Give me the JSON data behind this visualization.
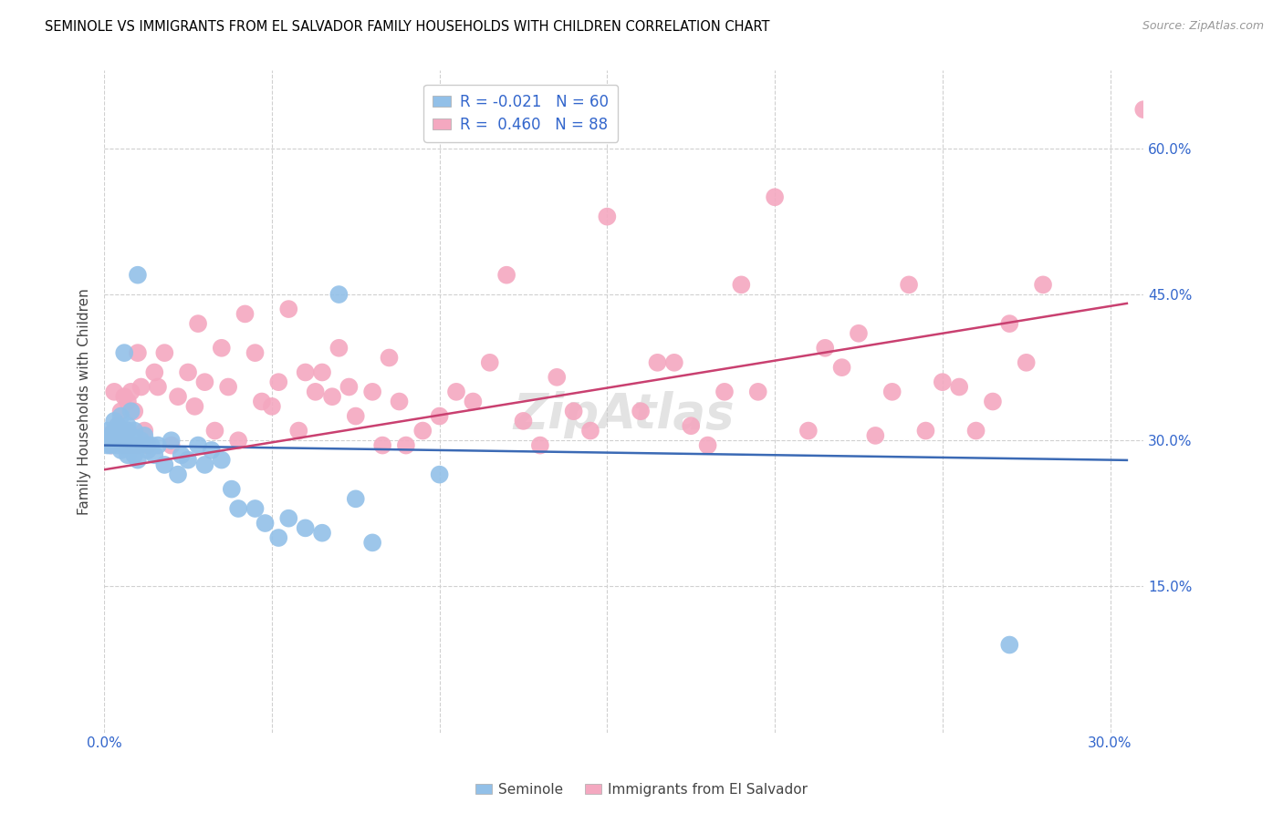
{
  "title": "SEMINOLE VS IMMIGRANTS FROM EL SALVADOR FAMILY HOUSEHOLDS WITH CHILDREN CORRELATION CHART",
  "source": "Source: ZipAtlas.com",
  "ylabel": "Family Households with Children",
  "xlim": [
    0.0,
    0.31
  ],
  "ylim": [
    0.0,
    0.68
  ],
  "x_ticks": [
    0.0,
    0.05,
    0.1,
    0.15,
    0.2,
    0.25,
    0.3
  ],
  "x_tick_labels": [
    "0.0%",
    "",
    "",
    "",
    "",
    "",
    "30.0%"
  ],
  "y_ticks": [
    0.15,
    0.3,
    0.45,
    0.6
  ],
  "y_tick_labels": [
    "15.0%",
    "30.0%",
    "45.0%",
    "60.0%"
  ],
  "seminole_R": -0.021,
  "seminole_N": 60,
  "salvador_R": 0.46,
  "salvador_N": 88,
  "seminole_color": "#92c0e8",
  "salvador_color": "#f4a8c0",
  "seminole_line_color": "#3b6ab5",
  "salvador_line_color": "#c94070",
  "legend_label_blue": "Seminole",
  "legend_label_pink": "Immigrants from El Salvador",
  "seminole_x": [
    0.001,
    0.001,
    0.002,
    0.002,
    0.003,
    0.003,
    0.003,
    0.004,
    0.004,
    0.004,
    0.005,
    0.005,
    0.005,
    0.005,
    0.006,
    0.006,
    0.006,
    0.007,
    0.007,
    0.007,
    0.007,
    0.007,
    0.008,
    0.008,
    0.008,
    0.009,
    0.009,
    0.009,
    0.01,
    0.01,
    0.01,
    0.011,
    0.011,
    0.012,
    0.013,
    0.014,
    0.015,
    0.016,
    0.018,
    0.02,
    0.022,
    0.023,
    0.025,
    0.028,
    0.03,
    0.032,
    0.035,
    0.038,
    0.04,
    0.045,
    0.048,
    0.052,
    0.055,
    0.06,
    0.065,
    0.07,
    0.075,
    0.08,
    0.1,
    0.27
  ],
  "seminole_y": [
    0.295,
    0.31,
    0.305,
    0.295,
    0.32,
    0.3,
    0.31,
    0.305,
    0.295,
    0.315,
    0.325,
    0.3,
    0.31,
    0.29,
    0.39,
    0.305,
    0.295,
    0.315,
    0.3,
    0.31,
    0.295,
    0.285,
    0.33,
    0.305,
    0.295,
    0.31,
    0.285,
    0.3,
    0.295,
    0.28,
    0.47,
    0.3,
    0.295,
    0.305,
    0.29,
    0.295,
    0.285,
    0.295,
    0.275,
    0.3,
    0.265,
    0.285,
    0.28,
    0.295,
    0.275,
    0.29,
    0.28,
    0.25,
    0.23,
    0.23,
    0.215,
    0.2,
    0.22,
    0.21,
    0.205,
    0.45,
    0.24,
    0.195,
    0.265,
    0.09
  ],
  "salvador_x": [
    0.001,
    0.002,
    0.003,
    0.003,
    0.004,
    0.005,
    0.005,
    0.006,
    0.006,
    0.007,
    0.007,
    0.008,
    0.008,
    0.009,
    0.01,
    0.01,
    0.011,
    0.012,
    0.013,
    0.015,
    0.016,
    0.018,
    0.02,
    0.022,
    0.025,
    0.027,
    0.028,
    0.03,
    0.033,
    0.035,
    0.037,
    0.04,
    0.042,
    0.045,
    0.047,
    0.05,
    0.052,
    0.055,
    0.058,
    0.06,
    0.063,
    0.065,
    0.068,
    0.07,
    0.073,
    0.075,
    0.08,
    0.083,
    0.085,
    0.088,
    0.09,
    0.095,
    0.1,
    0.105,
    0.11,
    0.115,
    0.12,
    0.125,
    0.13,
    0.135,
    0.14,
    0.145,
    0.15,
    0.16,
    0.165,
    0.17,
    0.175,
    0.18,
    0.185,
    0.19,
    0.195,
    0.2,
    0.21,
    0.215,
    0.22,
    0.225,
    0.23,
    0.235,
    0.24,
    0.245,
    0.25,
    0.255,
    0.26,
    0.265,
    0.27,
    0.275,
    0.28,
    0.31
  ],
  "salvador_y": [
    0.305,
    0.295,
    0.35,
    0.31,
    0.315,
    0.33,
    0.3,
    0.345,
    0.295,
    0.34,
    0.31,
    0.35,
    0.295,
    0.33,
    0.39,
    0.295,
    0.355,
    0.31,
    0.295,
    0.37,
    0.355,
    0.39,
    0.295,
    0.345,
    0.37,
    0.335,
    0.42,
    0.36,
    0.31,
    0.395,
    0.355,
    0.3,
    0.43,
    0.39,
    0.34,
    0.335,
    0.36,
    0.435,
    0.31,
    0.37,
    0.35,
    0.37,
    0.345,
    0.395,
    0.355,
    0.325,
    0.35,
    0.295,
    0.385,
    0.34,
    0.295,
    0.31,
    0.325,
    0.35,
    0.34,
    0.38,
    0.47,
    0.32,
    0.295,
    0.365,
    0.33,
    0.31,
    0.53,
    0.33,
    0.38,
    0.38,
    0.315,
    0.295,
    0.35,
    0.46,
    0.35,
    0.55,
    0.31,
    0.395,
    0.375,
    0.41,
    0.305,
    0.35,
    0.46,
    0.31,
    0.36,
    0.355,
    0.31,
    0.34,
    0.42,
    0.38,
    0.46,
    0.64
  ]
}
